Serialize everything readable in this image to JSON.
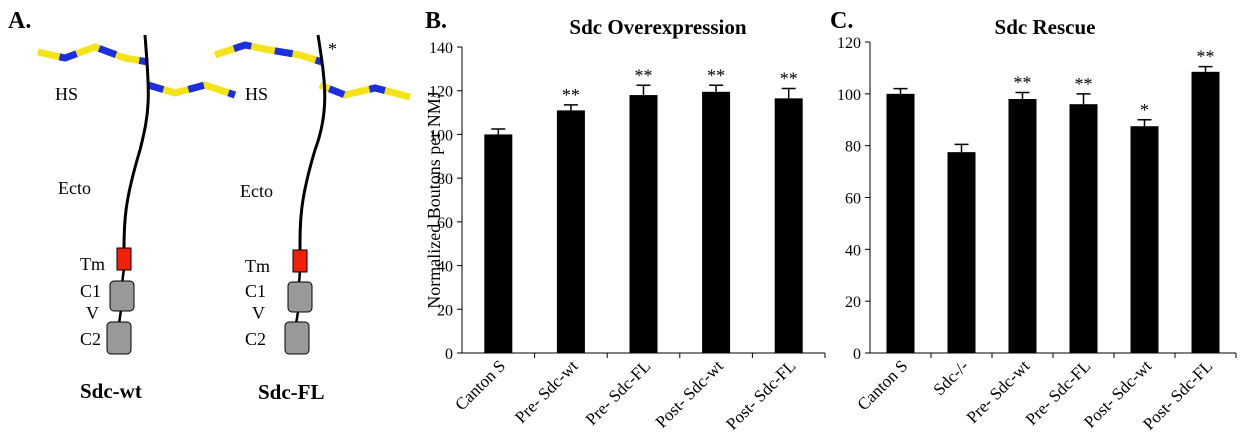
{
  "diagram": {
    "panel_label": "A.",
    "molecules": [
      {
        "name": "Sdc-wt",
        "labels": [
          "HS",
          "Ecto",
          "Tm",
          "C1",
          "V",
          "C2"
        ]
      },
      {
        "name": "Sdc-FL",
        "labels": [
          "HS",
          "Ecto",
          "Tm",
          "C1",
          "V",
          "C2"
        ],
        "mark": "*"
      }
    ]
  },
  "chart_data": [
    {
      "type": "bar",
      "panel_label": "B.",
      "title": "Sdc Overexpression",
      "y_label": "Normalized Boutons per NMJ",
      "categories": [
        "Canton S",
        "Pre- Sdc-wt",
        "Pre- Sdc-FL",
        "Post- Sdc-wt",
        "Post- Sdc-FL"
      ],
      "values": [
        100,
        111,
        118,
        119.5,
        116.5
      ],
      "errors": [
        2.5,
        2.5,
        4.5,
        3,
        4.5
      ],
      "annotations": [
        null,
        "**",
        "**",
        "**",
        "**"
      ],
      "color": "#000000",
      "ylim": [
        0,
        140
      ],
      "yticks": [
        0,
        20,
        40,
        60,
        80,
        100,
        120,
        140
      ],
      "grid": false
    },
    {
      "type": "bar",
      "panel_label": "C.",
      "title": "Sdc Rescue",
      "categories": [
        "Canton S",
        "Sdc-/-",
        "Pre- Sdc-wt",
        "Pre- Sdc-FL",
        "Post- Sdc-wt",
        "Post- Sdc-FL"
      ],
      "values": [
        100,
        77.5,
        98,
        96,
        87.5,
        108.5
      ],
      "errors": [
        2,
        3,
        2.5,
        4,
        2.5,
        2
      ],
      "annotations": [
        null,
        null,
        "**",
        "**",
        "*",
        "**"
      ],
      "color": "#000000",
      "ylim": [
        0,
        120
      ],
      "yticks": [
        0,
        20,
        40,
        60,
        80,
        100,
        120
      ],
      "grid": false
    }
  ]
}
